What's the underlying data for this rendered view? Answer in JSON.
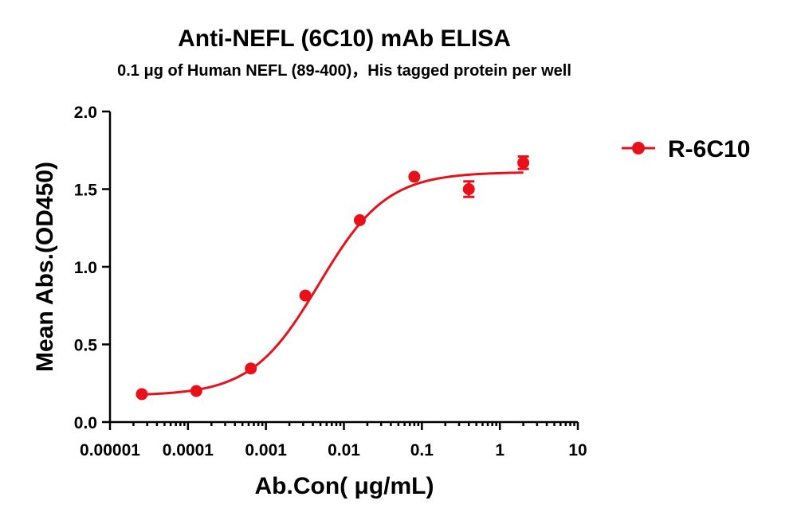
{
  "chart_data": {
    "type": "scatter",
    "title": "Anti-NEFL (6C10) mAb ELISA",
    "subtitle": "0.1 μg of Human NEFL (89-400)，His tagged protein per well",
    "xlabel": "Ab.Con( μg/mL)",
    "ylabel": "Mean Abs.(OD450)",
    "xscale": "log",
    "xlim": [
      1e-05,
      10
    ],
    "ylim": [
      0,
      2.0
    ],
    "xticks": [
      1e-05,
      0.0001,
      0.001,
      0.01,
      0.1,
      1,
      10
    ],
    "xtick_labels": [
      "0.00001",
      "0.0001",
      "0.001",
      "0.01",
      "0.1",
      "1",
      "10"
    ],
    "yticks": [
      0,
      0.5,
      1.0,
      1.5,
      2.0
    ],
    "ytick_labels": [
      "0.0",
      "0.5",
      "1.0",
      "1.5",
      "2.0"
    ],
    "legend_position": "top-right",
    "grid": false,
    "series": [
      {
        "name": "R-6C10",
        "color": "#e8101a",
        "marker": "circle",
        "fit": "4PL sigmoid",
        "fit_params": {
          "bottom": 0.17,
          "top": 1.61,
          "ec50": 0.0048,
          "hill": 1.0
        },
        "points": [
          {
            "x": 2.56e-05,
            "y": 0.18,
            "err": 0.0
          },
          {
            "x": 0.000128,
            "y": 0.2,
            "err": 0.0
          },
          {
            "x": 0.00064,
            "y": 0.345,
            "err": 0.0
          },
          {
            "x": 0.0032,
            "y": 0.815,
            "err": 0.0
          },
          {
            "x": 0.016,
            "y": 1.3,
            "err": 0.0
          },
          {
            "x": 0.08,
            "y": 1.58,
            "err": 0.0
          },
          {
            "x": 0.4,
            "y": 1.5,
            "err": 0.05
          },
          {
            "x": 2.0,
            "y": 1.67,
            "err": 0.04
          }
        ]
      }
    ]
  }
}
